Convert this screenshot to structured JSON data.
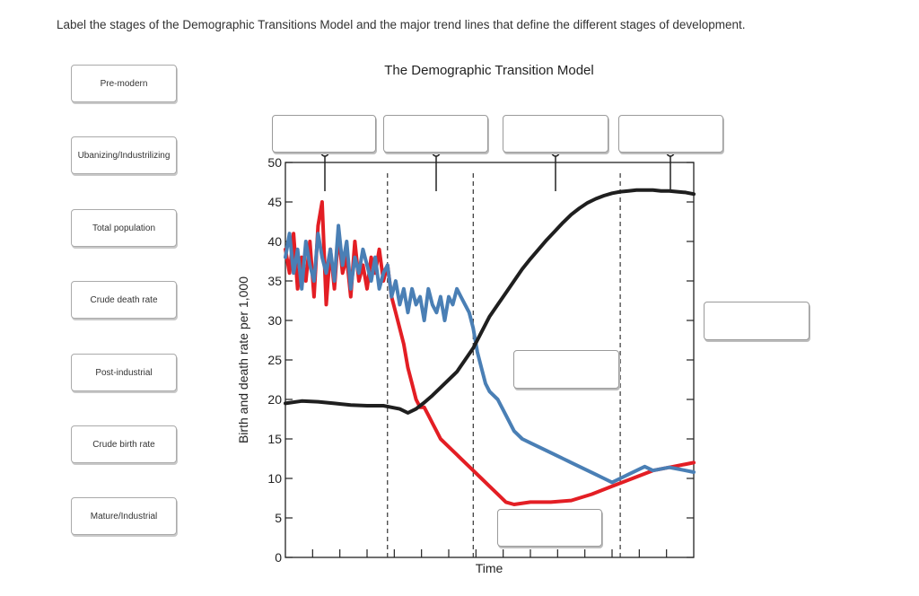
{
  "instruction": "Label the stages of the Demographic Transitions Model and the major trend lines that define the different stages of development.",
  "labels": [
    "Pre-modern",
    "Ubanizing/Industrilizing",
    "Total population",
    "Crude death rate",
    "Post-industrial",
    "Crude birth rate",
    "Mature/Industrial"
  ],
  "chart_data": {
    "type": "line",
    "title": "The Demographic Transition Model",
    "xlabel": "Time",
    "ylabel": "Birth and death rate per 1,000",
    "ylim": [
      0,
      50
    ],
    "yticks": [
      0,
      5,
      10,
      15,
      20,
      25,
      30,
      35,
      40,
      45,
      50
    ],
    "xlim": [
      0,
      100
    ],
    "stage_boundaries": [
      25,
      46,
      82
    ],
    "series": [
      {
        "color": "#e31e24",
        "x": [
          0,
          1,
          2,
          3,
          4,
          5,
          6,
          7,
          8,
          9,
          10,
          11,
          12,
          13,
          14,
          15,
          16,
          17,
          18,
          19,
          20,
          21,
          22,
          23,
          24,
          25,
          26,
          27,
          28,
          29,
          30,
          31,
          32,
          33,
          34,
          35,
          36,
          37,
          38,
          40,
          42,
          44,
          46,
          48,
          50,
          52,
          54,
          56,
          60,
          65,
          70,
          75,
          80,
          85,
          90,
          95,
          100
        ],
        "values": [
          39,
          36,
          41,
          34,
          38,
          35,
          40,
          33,
          42,
          45,
          32,
          39,
          34,
          41,
          36,
          38,
          33,
          40,
          35,
          37,
          34,
          38,
          36,
          39,
          35,
          37,
          33,
          31,
          29,
          27,
          24,
          22,
          20,
          19,
          19,
          18,
          17,
          16,
          15,
          14,
          13,
          12,
          11,
          10,
          9,
          8,
          7,
          6.7,
          7,
          7,
          7.2,
          8,
          9,
          10,
          11,
          11.5,
          12
        ]
      },
      {
        "color": "#4a7fb5",
        "x": [
          0,
          1,
          2,
          3,
          4,
          5,
          6,
          7,
          8,
          9,
          10,
          11,
          12,
          13,
          14,
          15,
          16,
          17,
          18,
          19,
          20,
          21,
          22,
          23,
          24,
          25,
          26,
          27,
          28,
          29,
          30,
          31,
          32,
          33,
          34,
          35,
          36,
          37,
          38,
          39,
          40,
          41,
          42,
          43,
          44,
          45,
          46,
          47,
          48,
          49,
          50,
          52,
          54,
          56,
          58,
          60,
          62,
          64,
          66,
          68,
          70,
          72,
          74,
          76,
          78,
          80,
          82,
          84,
          86,
          88,
          90,
          92,
          94,
          96,
          98,
          100
        ],
        "values": [
          38,
          41,
          36,
          39,
          34,
          40,
          37,
          35,
          41,
          38,
          36,
          39,
          35,
          42,
          37,
          40,
          34,
          38,
          36,
          39,
          37,
          35,
          38,
          34,
          36,
          37,
          33,
          35,
          32,
          34,
          31,
          34,
          32,
          33,
          30,
          34,
          32,
          31,
          33,
          30,
          33,
          32,
          34,
          33,
          32,
          31,
          29,
          26,
          24,
          22,
          21,
          20,
          18,
          16,
          15,
          14.5,
          14,
          13.5,
          13,
          12.5,
          12,
          11.5,
          11,
          10.5,
          10,
          9.5,
          10,
          10.5,
          11,
          11.5,
          11,
          11.2,
          11.4,
          11.2,
          11,
          10.8
        ]
      },
      {
        "color": "#1f1f1f",
        "x": [
          0,
          4,
          8,
          12,
          16,
          20,
          24,
          26,
          28,
          30,
          32,
          34,
          36,
          38,
          40,
          42,
          44,
          46,
          48,
          50,
          52,
          54,
          56,
          58,
          60,
          62,
          64,
          66,
          68,
          70,
          72,
          74,
          76,
          78,
          80,
          82,
          84,
          86,
          88,
          90,
          92,
          94,
          96,
          98,
          100
        ],
        "values": [
          19.5,
          19.8,
          19.7,
          19.5,
          19.3,
          19.2,
          19.2,
          19.0,
          18.8,
          18.3,
          18.8,
          19.6,
          20.5,
          21.5,
          22.5,
          23.5,
          25,
          26.5,
          28.5,
          30.5,
          32,
          33.5,
          35,
          36.5,
          37.8,
          39,
          40.2,
          41.3,
          42.4,
          43.4,
          44.2,
          44.9,
          45.4,
          45.8,
          46.1,
          46.3,
          46.4,
          46.5,
          46.5,
          46.5,
          46.4,
          46.4,
          46.3,
          46.2,
          46.0
        ]
      }
    ]
  }
}
